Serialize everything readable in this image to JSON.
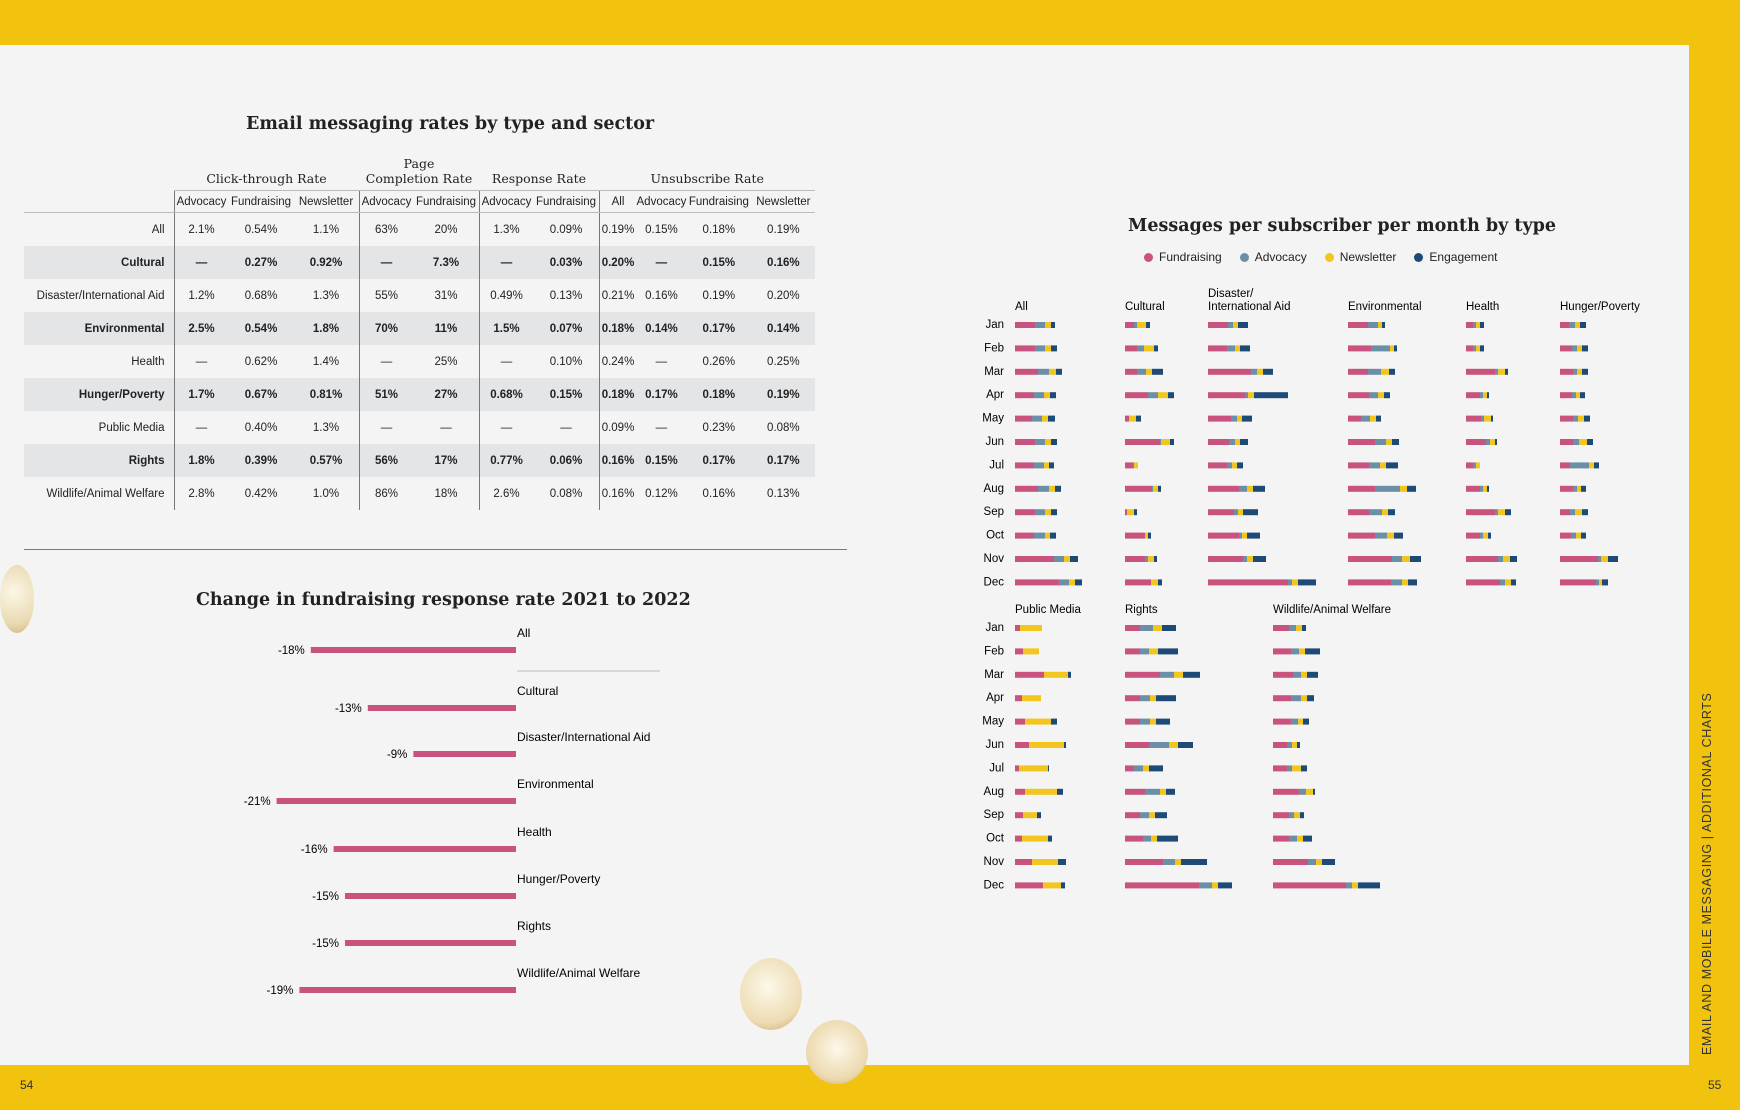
{
  "page": {
    "left_page_number": "54",
    "right_page_number": "55",
    "section_label": "EMAIL AND MOBILE MESSAGING  |  ADDITIONAL CHARTS"
  },
  "colors": {
    "band": "#f2c30e",
    "fundraising": "#c9537f",
    "advocacy": "#6b8fa6",
    "newsletter": "#f2c61e",
    "engagement": "#1e4a78"
  },
  "table": {
    "title": "Email messaging rates by type and sector",
    "groups": [
      {
        "label": "Click-through Rate",
        "span": 3
      },
      {
        "label": "Page\nCompletion Rate",
        "span": 2
      },
      {
        "label": "Response Rate",
        "span": 2
      },
      {
        "label": "Unsubscribe Rate",
        "span": 4
      }
    ],
    "subheaders": [
      "Advocacy",
      "Fundraising",
      "Newsletter",
      "Advocacy",
      "Fundraising",
      "Advocacy",
      "Fundraising",
      "All",
      "Advocacy",
      "Fundraising",
      "Newsletter"
    ],
    "rows": [
      {
        "label": "All",
        "values": [
          "2.1%",
          "0.54%",
          "1.1%",
          "63%",
          "20%",
          "1.3%",
          "0.09%",
          "0.19%",
          "0.15%",
          "0.18%",
          "0.19%"
        ]
      },
      {
        "label": "Cultural",
        "values": [
          "—",
          "0.27%",
          "0.92%",
          "—",
          "7.3%",
          "—",
          "0.03%",
          "0.20%",
          "—",
          "0.15%",
          "0.16%"
        ]
      },
      {
        "label": "Disaster/International Aid",
        "values": [
          "1.2%",
          "0.68%",
          "1.3%",
          "55%",
          "31%",
          "0.49%",
          "0.13%",
          "0.21%",
          "0.16%",
          "0.19%",
          "0.20%"
        ]
      },
      {
        "label": "Environmental",
        "values": [
          "2.5%",
          "0.54%",
          "1.8%",
          "70%",
          "11%",
          "1.5%",
          "0.07%",
          "0.18%",
          "0.14%",
          "0.17%",
          "0.14%"
        ]
      },
      {
        "label": "Health",
        "values": [
          "—",
          "0.62%",
          "1.4%",
          "—",
          "25%",
          "—",
          "0.10%",
          "0.24%",
          "—",
          "0.26%",
          "0.25%"
        ]
      },
      {
        "label": "Hunger/Poverty",
        "values": [
          "1.7%",
          "0.67%",
          "0.81%",
          "51%",
          "27%",
          "0.68%",
          "0.15%",
          "0.18%",
          "0.17%",
          "0.18%",
          "0.19%"
        ]
      },
      {
        "label": "Public Media",
        "values": [
          "—",
          "0.40%",
          "1.3%",
          "—",
          "—",
          "—",
          "—",
          "0.09%",
          "—",
          "0.23%",
          "0.08%"
        ]
      },
      {
        "label": "Rights",
        "values": [
          "1.8%",
          "0.39%",
          "0.57%",
          "56%",
          "17%",
          "0.77%",
          "0.06%",
          "0.16%",
          "0.15%",
          "0.17%",
          "0.17%"
        ]
      },
      {
        "label": "Wildlife/Animal Welfare",
        "values": [
          "2.8%",
          "0.42%",
          "1.0%",
          "86%",
          "18%",
          "2.6%",
          "0.08%",
          "0.16%",
          "0.12%",
          "0.16%",
          "0.13%"
        ]
      }
    ]
  },
  "chart_data": [
    {
      "type": "bar",
      "orientation": "horizontal",
      "title": "Change in fundraising response rate 2021 to 2022",
      "categories": [
        "All",
        "Cultural",
        "Disaster/International Aid",
        "Environmental",
        "Health",
        "Hunger/Poverty",
        "Rights",
        "Wildlife/Animal Welfare"
      ],
      "values": [
        -18,
        -13,
        -9,
        -21,
        -16,
        -15,
        -15,
        -19
      ],
      "value_labels": [
        "-18%",
        "-13%",
        "-9%",
        "-21%",
        "-16%",
        "-15%",
        "-15%",
        "-19%"
      ],
      "unit": "%"
    },
    {
      "type": "bar",
      "orientation": "horizontal",
      "stacked": true,
      "title": "Messages per subscriber per month by type",
      "legend": [
        "Fundraising",
        "Advocacy",
        "Newsletter",
        "Engagement"
      ],
      "legend_position": "top",
      "months": [
        "Jan",
        "Feb",
        "Mar",
        "Apr",
        "May",
        "Jun",
        "Jul",
        "Aug",
        "Sep",
        "Oct",
        "Nov",
        "Dec"
      ],
      "panels": [
        {
          "name": "All",
          "values": [
            [
              2.0,
              1.0,
              0.6,
              0.4
            ],
            [
              2.0,
              1.0,
              0.6,
              0.6
            ],
            [
              2.3,
              1.1,
              0.7,
              0.6
            ],
            [
              1.9,
              1.0,
              0.6,
              0.6
            ],
            [
              1.7,
              1.0,
              0.6,
              0.7
            ],
            [
              2.0,
              1.0,
              0.6,
              0.6
            ],
            [
              1.9,
              1.0,
              0.5,
              0.5
            ],
            [
              2.3,
              1.1,
              0.6,
              0.6
            ],
            [
              2.0,
              1.0,
              0.6,
              0.6
            ],
            [
              1.9,
              1.1,
              0.5,
              0.6
            ],
            [
              3.9,
              1.0,
              0.6,
              0.8
            ],
            [
              4.4,
              1.0,
              0.6,
              0.7
            ]
          ]
        },
        {
          "name": "Cultural",
          "values": [
            [
              0.9,
              0.3,
              0.9,
              0.4
            ],
            [
              1.2,
              0.7,
              1.0,
              0.4
            ],
            [
              1.2,
              0.9,
              0.6,
              1.1
            ],
            [
              2.3,
              1.0,
              1.0,
              0.6
            ],
            [
              0.4,
              0.0,
              0.7,
              0.5
            ],
            [
              3.5,
              0.1,
              0.9,
              0.4
            ],
            [
              0.8,
              0.1,
              0.4,
              0.0
            ],
            [
              2.7,
              0.1,
              0.5,
              0.3
            ],
            [
              0.2,
              0.0,
              0.7,
              0.3
            ],
            [
              2.0,
              0.0,
              0.3,
              0.3
            ],
            [
              2.0,
              0.3,
              0.6,
              0.3
            ],
            [
              2.6,
              0.0,
              0.7,
              0.4
            ]
          ]
        },
        {
          "name": "Disaster/\nInternational Aid",
          "values": [
            [
              2.0,
              0.5,
              0.5,
              1.0
            ],
            [
              1.9,
              0.8,
              0.5,
              1.0
            ],
            [
              4.3,
              0.6,
              0.6,
              1.0
            ],
            [
              3.7,
              0.3,
              0.6,
              3.4
            ],
            [
              2.3,
              0.6,
              0.5,
              1.0
            ],
            [
              2.1,
              0.6,
              0.5,
              0.8
            ],
            [
              1.9,
              0.5,
              0.5,
              0.6
            ],
            [
              3.1,
              0.8,
              0.6,
              1.2
            ],
            [
              2.6,
              0.4,
              0.5,
              1.5
            ],
            [
              3.1,
              0.3,
              0.5,
              1.3
            ],
            [
              3.5,
              0.4,
              0.6,
              1.3
            ],
            [
              8.0,
              0.4,
              0.6,
              1.8
            ]
          ]
        },
        {
          "name": "Environmental",
          "values": [
            [
              2.0,
              1.0,
              0.4,
              0.3
            ],
            [
              2.3,
              1.9,
              0.4,
              0.3
            ],
            [
              2.0,
              1.3,
              0.8,
              0.6
            ],
            [
              2.1,
              0.9,
              0.6,
              0.6
            ],
            [
              1.3,
              0.9,
              0.6,
              0.5
            ],
            [
              2.7,
              1.1,
              0.6,
              0.7
            ],
            [
              2.1,
              1.1,
              0.6,
              1.2
            ],
            [
              2.7,
              2.5,
              0.7,
              0.9
            ],
            [
              2.1,
              1.3,
              0.6,
              0.7
            ],
            [
              2.7,
              1.2,
              0.7,
              0.9
            ],
            [
              4.4,
              1.0,
              0.8,
              1.1
            ],
            [
              4.3,
              1.1,
              0.6,
              0.9
            ]
          ]
        },
        {
          "name": "Health",
          "values": [
            [
              0.7,
              0.3,
              0.4,
              0.4
            ],
            [
              0.7,
              0.3,
              0.4,
              0.4
            ],
            [
              2.9,
              0.3,
              0.7,
              0.3
            ],
            [
              1.4,
              0.3,
              0.4,
              0.2
            ],
            [
              1.5,
              0.3,
              0.7,
              0.2
            ],
            [
              2.0,
              0.4,
              0.5,
              0.2
            ],
            [
              0.7,
              0.3,
              0.4,
              0.0
            ],
            [
              1.4,
              0.3,
              0.4,
              0.2
            ],
            [
              2.9,
              0.3,
              0.7,
              0.6
            ],
            [
              1.4,
              0.3,
              0.5,
              0.3
            ],
            [
              3.2,
              0.5,
              0.7,
              0.7
            ],
            [
              3.4,
              0.5,
              0.6,
              0.5
            ]
          ]
        },
        {
          "name": "Hunger/Poverty",
          "values": [
            [
              0.9,
              0.6,
              0.5,
              0.6
            ],
            [
              1.2,
              0.5,
              0.5,
              0.6
            ],
            [
              1.3,
              0.4,
              0.5,
              0.6
            ],
            [
              1.2,
              0.4,
              0.4,
              0.5
            ],
            [
              1.3,
              0.5,
              0.6,
              0.6
            ],
            [
              1.3,
              0.6,
              0.8,
              0.6
            ],
            [
              1.0,
              1.9,
              0.5,
              0.5
            ],
            [
              1.3,
              0.4,
              0.4,
              0.5
            ],
            [
              1.0,
              0.5,
              0.7,
              0.6
            ],
            [
              1.1,
              0.5,
              0.5,
              0.5
            ],
            [
              3.8,
              0.3,
              0.7,
              1.0
            ],
            [
              3.6,
              0.3,
              0.3,
              0.6
            ]
          ]
        },
        {
          "name": "Public Media",
          "values": [
            [
              0.5,
              0.0,
              2.2,
              0.0
            ],
            [
              0.8,
              0.0,
              1.6,
              0.0
            ],
            [
              2.9,
              0.0,
              2.4,
              0.3
            ],
            [
              0.7,
              0.0,
              1.9,
              0.0
            ],
            [
              1.0,
              0.0,
              2.6,
              0.6
            ],
            [
              1.4,
              0.0,
              3.5,
              0.2
            ],
            [
              0.4,
              0.0,
              2.9,
              0.1
            ],
            [
              1.0,
              0.0,
              3.2,
              0.6
            ],
            [
              0.8,
              0.0,
              1.4,
              0.4
            ],
            [
              0.7,
              0.0,
              2.6,
              0.4
            ],
            [
              1.7,
              0.0,
              2.6,
              0.8
            ],
            [
              2.8,
              0.0,
              1.8,
              0.4
            ]
          ]
        },
        {
          "name": "Rights",
          "values": [
            [
              1.5,
              1.3,
              0.9,
              1.4
            ],
            [
              1.5,
              0.9,
              0.9,
              2.0
            ],
            [
              3.5,
              1.4,
              0.9,
              1.7
            ],
            [
              1.5,
              1.0,
              0.6,
              2.0
            ],
            [
              1.5,
              1.0,
              0.6,
              1.4
            ],
            [
              2.4,
              2.0,
              0.9,
              1.5
            ],
            [
              0.9,
              0.9,
              0.6,
              1.4
            ],
            [
              2.0,
              1.5,
              0.6,
              0.9
            ],
            [
              1.5,
              0.9,
              0.6,
              1.2
            ],
            [
              1.8,
              0.8,
              0.6,
              2.1
            ],
            [
              3.8,
              1.2,
              0.6,
              2.6
            ],
            [
              7.4,
              1.3,
              0.6,
              1.4
            ]
          ]
        },
        {
          "name": "Wildlife/Animal Welfare",
          "values": [
            [
              1.6,
              0.7,
              0.6,
              0.4
            ],
            [
              1.8,
              0.8,
              0.6,
              1.5
            ],
            [
              2.0,
              0.8,
              0.6,
              1.1
            ],
            [
              1.8,
              1.0,
              0.6,
              0.7
            ],
            [
              1.8,
              0.7,
              0.5,
              0.6
            ],
            [
              1.4,
              0.5,
              0.5,
              0.3
            ],
            [
              1.4,
              0.5,
              0.9,
              0.6
            ],
            [
              2.6,
              0.7,
              0.7,
              0.2
            ],
            [
              1.6,
              0.5,
              0.6,
              0.4
            ],
            [
              1.6,
              0.8,
              0.6,
              0.9
            ],
            [
              3.5,
              0.8,
              0.6,
              1.3
            ],
            [
              7.3,
              0.6,
              0.6,
              2.2
            ]
          ]
        }
      ]
    }
  ]
}
